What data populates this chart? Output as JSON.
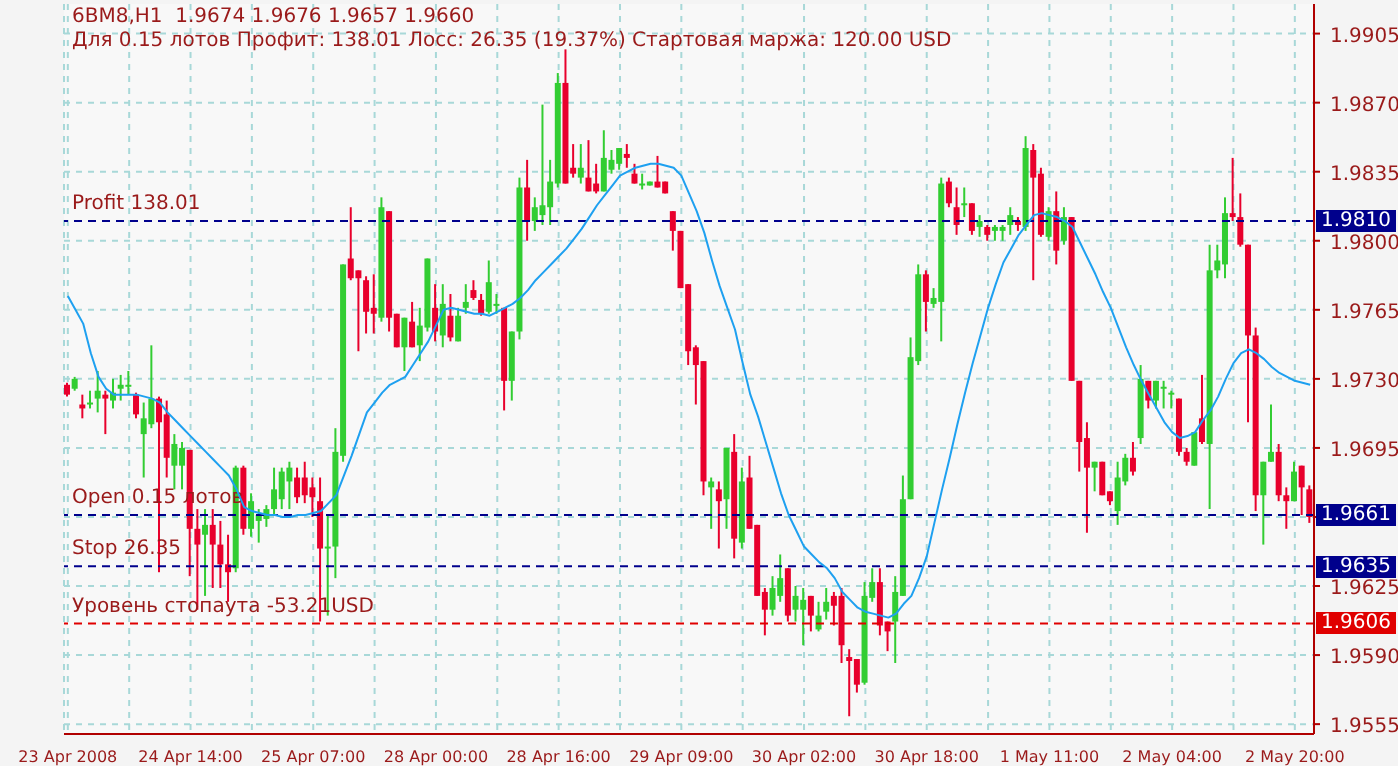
{
  "chart_data": {
    "type": "candlestick",
    "title": "6BM8,H1  1.9674 1.9676 1.9657 1.9660",
    "subtitle": "Для 0.15 лотов Профит: 138.01 Лосс: 26.35 (19.37%) Стартовая маржа: 120.00 USD",
    "categories": [
      "23 Apr 2008",
      null,
      null,
      null,
      null,
      null,
      null,
      null,
      null,
      null,
      null,
      null,
      null,
      null,
      null,
      null,
      "24 Apr 14:00",
      null,
      null,
      null,
      null,
      null,
      null,
      null,
      null,
      null,
      null,
      null,
      null,
      null,
      null,
      null,
      "25 Apr 07:00",
      null,
      null,
      null,
      null,
      null,
      null,
      null,
      null,
      null,
      null,
      null,
      null,
      null,
      null,
      null,
      "28 Apr 00:00",
      null,
      null,
      null,
      null,
      null,
      null,
      null,
      null,
      null,
      null,
      null,
      null,
      null,
      null,
      null,
      "28 Apr 16:00",
      null,
      null,
      null,
      null,
      null,
      null,
      null,
      null,
      null,
      null,
      null,
      null,
      null,
      null,
      null,
      "29 Apr 09:00",
      null,
      null,
      null,
      null,
      null,
      null,
      null,
      null,
      null,
      null,
      null,
      null,
      null,
      null,
      null,
      "30 Apr 02:00",
      null,
      null,
      null,
      null,
      null,
      null,
      null,
      null,
      null,
      null,
      null,
      null,
      null,
      null,
      null,
      "30 Apr 18:00",
      null,
      null,
      null,
      null,
      null,
      null,
      null,
      null,
      null,
      null,
      null,
      null,
      null,
      null,
      null,
      "1 May 11:00",
      null,
      null,
      null,
      null,
      null,
      null,
      null,
      null,
      null,
      null,
      null,
      null,
      null,
      null,
      null,
      "2 May 04:00",
      null,
      null,
      null,
      null,
      null,
      null,
      null,
      null,
      null,
      null,
      null,
      null,
      null,
      null,
      null,
      "2 May 20:00",
      null,
      null
    ],
    "series": [
      {
        "ohlc": [
          [
            1.9727,
            1.9728,
            1.9721,
            1.9722
          ],
          [
            1.9725,
            1.9731,
            1.9724,
            1.973
          ],
          [
            1.9717,
            1.9722,
            1.971,
            1.9715
          ],
          [
            1.9717,
            1.9724,
            1.9715,
            1.9718
          ],
          [
            1.972,
            1.9734,
            1.9713,
            1.9724
          ],
          [
            1.9722,
            1.9724,
            1.9702,
            1.972
          ],
          [
            1.9719,
            1.973,
            1.9715,
            1.9723
          ],
          [
            1.9725,
            1.9732,
            1.9719,
            1.9727
          ],
          [
            1.9726,
            1.9734,
            1.9722,
            1.9727
          ],
          [
            1.9722,
            1.9723,
            1.971,
            1.9712
          ],
          [
            1.9702,
            1.9718,
            1.968,
            1.971
          ],
          [
            1.9707,
            1.9747,
            1.9705,
            1.972
          ],
          [
            1.972,
            1.9721,
            1.9632,
            1.9708
          ],
          [
            1.9712,
            1.9719,
            1.968,
            1.969
          ],
          [
            1.9686,
            1.9702,
            1.9674,
            1.9697
          ],
          [
            1.9686,
            1.9698,
            1.9674,
            1.9695
          ],
          [
            1.9694,
            1.9694,
            1.963,
            1.9654
          ],
          [
            1.9654,
            1.9664,
            1.9613,
            1.9646
          ],
          [
            1.9651,
            1.9664,
            1.962,
            1.9656
          ],
          [
            1.9656,
            1.9664,
            1.9624,
            1.9646
          ],
          [
            1.9646,
            1.9658,
            1.9624,
            1.9636
          ],
          [
            1.9636,
            1.9651,
            1.9617,
            1.9632
          ],
          [
            1.9634,
            1.9686,
            1.9632,
            1.9685
          ],
          [
            1.9685,
            1.9686,
            1.9651,
            1.9654
          ],
          [
            1.9654,
            1.9672,
            1.965,
            1.9668
          ],
          [
            1.9658,
            1.9664,
            1.9647,
            1.9661
          ],
          [
            1.9659,
            1.9666,
            1.9655,
            1.9664
          ],
          [
            1.9664,
            1.9685,
            1.9661,
            1.9674
          ],
          [
            1.9669,
            1.9685,
            1.9664,
            1.9683
          ],
          [
            1.9678,
            1.9688,
            1.9664,
            1.9685
          ],
          [
            1.968,
            1.9685,
            1.9667,
            1.967
          ],
          [
            1.968,
            1.9688,
            1.9667,
            1.9671
          ],
          [
            1.9675,
            1.968,
            1.966,
            1.967
          ],
          [
            1.9668,
            1.968,
            1.9607,
            1.9644
          ],
          [
            1.9644,
            1.9661,
            1.961,
            1.9645
          ],
          [
            1.9645,
            1.9705,
            1.9629,
            1.9693
          ],
          [
            1.9691,
            1.9788,
            1.9688,
            1.9788
          ],
          [
            1.9791,
            1.9817,
            1.978,
            1.9781
          ],
          [
            1.9785,
            1.9785,
            1.9744,
            1.9781
          ],
          [
            1.978,
            1.9782,
            1.9753,
            1.9764
          ],
          [
            1.9766,
            1.9783,
            1.9753,
            1.9763
          ],
          [
            1.9761,
            1.9822,
            1.9759,
            1.9817
          ],
          [
            1.9815,
            1.9815,
            1.9754,
            1.9761
          ],
          [
            1.9763,
            1.9763,
            1.9746,
            1.9746
          ],
          [
            1.9746,
            1.9761,
            1.9734,
            1.9761
          ],
          [
            1.9759,
            1.9769,
            1.9746,
            1.9746
          ],
          [
            1.9747,
            1.9766,
            1.9739,
            1.9757
          ],
          [
            1.9756,
            1.9791,
            1.9754,
            1.9791
          ],
          [
            1.9766,
            1.9778,
            1.9749,
            1.9754
          ],
          [
            1.9752,
            1.9778,
            1.9746,
            1.9768
          ],
          [
            1.9762,
            1.9773,
            1.9749,
            1.9751
          ],
          [
            1.9749,
            1.9766,
            1.9749,
            1.9762
          ],
          [
            1.9766,
            1.9778,
            1.9763,
            1.9769
          ],
          [
            1.9775,
            1.978,
            1.977,
            1.9771
          ],
          [
            1.977,
            1.9773,
            1.9762,
            1.9763
          ],
          [
            1.9764,
            1.979,
            1.9763,
            1.9779
          ],
          [
            1.9767,
            1.9773,
            1.9763,
            1.9768
          ],
          [
            1.9766,
            1.9766,
            1.9714,
            1.9729
          ],
          [
            1.9729,
            1.9754,
            1.9719,
            1.9754
          ],
          [
            1.9754,
            1.9832,
            1.975,
            1.9827
          ],
          [
            1.9827,
            1.9841,
            1.98,
            1.981
          ],
          [
            1.981,
            1.9822,
            1.9805,
            1.9817
          ],
          [
            1.9813,
            1.9869,
            1.9808,
            1.9818
          ],
          [
            1.9817,
            1.9841,
            1.9808,
            1.983
          ],
          [
            1.9829,
            1.9885,
            1.9827,
            1.988
          ],
          [
            1.988,
            1.9897,
            1.9829,
            1.9829
          ],
          [
            1.9837,
            1.9849,
            1.9832,
            1.9834
          ],
          [
            1.9832,
            1.9849,
            1.9829,
            1.9837
          ],
          [
            1.9832,
            1.9851,
            1.9825,
            1.9825
          ],
          [
            1.9829,
            1.9839,
            1.9824,
            1.9825
          ],
          [
            1.9825,
            1.9856,
            1.9825,
            1.9842
          ],
          [
            1.9836,
            1.9846,
            1.9834,
            1.9841
          ],
          [
            1.9839,
            1.9847,
            1.9836,
            1.9847
          ],
          [
            1.9844,
            1.9849,
            1.9837,
            1.9842
          ],
          [
            1.9834,
            1.9839,
            1.9829,
            1.9829
          ],
          [
            1.9828,
            1.9834,
            1.9826,
            1.9829
          ],
          [
            1.9828,
            1.983,
            1.9828,
            1.983
          ],
          [
            1.983,
            1.9843,
            1.9827,
            1.9827
          ],
          [
            1.983,
            1.983,
            1.9824,
            1.9824
          ],
          [
            1.9815,
            1.9815,
            1.9795,
            1.9805
          ],
          [
            1.9805,
            1.9805,
            1.9776,
            1.9776
          ],
          [
            1.9778,
            1.9778,
            1.9737,
            1.9744
          ],
          [
            1.9746,
            1.9747,
            1.9717,
            1.9737
          ],
          [
            1.9739,
            1.9739,
            1.9671,
            1.9678
          ],
          [
            1.9675,
            1.968,
            1.9654,
            1.9678
          ],
          [
            1.9674,
            1.9678,
            1.9644,
            1.9668
          ],
          [
            1.9669,
            1.9695,
            1.9654,
            1.9695
          ],
          [
            1.9693,
            1.9702,
            1.9639,
            1.9649
          ],
          [
            1.9647,
            1.9685,
            1.9644,
            1.9678
          ],
          [
            1.968,
            1.9691,
            1.9654,
            1.9654
          ],
          [
            1.9656,
            1.9656,
            1.962,
            1.962
          ],
          [
            1.9622,
            1.9624,
            1.96,
            1.9613
          ],
          [
            1.9613,
            1.963,
            1.961,
            1.9624
          ],
          [
            1.962,
            1.9641,
            1.9617,
            1.9629
          ],
          [
            1.9634,
            1.9634,
            1.9607,
            1.961
          ],
          [
            1.9613,
            1.9625,
            1.9607,
            1.962
          ],
          [
            1.9613,
            1.9624,
            1.9595,
            1.9618
          ],
          [
            1.962,
            1.962,
            1.9602,
            1.961
          ],
          [
            1.9603,
            1.9617,
            1.9602,
            1.961
          ],
          [
            1.9612,
            1.9624,
            1.9608,
            1.9617
          ],
          [
            1.962,
            1.9622,
            1.9605,
            1.9615
          ],
          [
            1.962,
            1.9624,
            1.9586,
            1.9595
          ],
          [
            1.9589,
            1.9593,
            1.9559,
            1.9587
          ],
          [
            1.9588,
            1.9588,
            1.9571,
            1.9575
          ],
          [
            1.9576,
            1.9627,
            1.9575,
            1.962
          ],
          [
            1.9619,
            1.9634,
            1.9617,
            1.9627
          ],
          [
            1.9627,
            1.9634,
            1.96,
            1.9605
          ],
          [
            1.9607,
            1.9607,
            1.9592,
            1.9602
          ],
          [
            1.9607,
            1.963,
            1.9586,
            1.9622
          ],
          [
            1.962,
            1.9681,
            1.962,
            1.9669
          ],
          [
            1.9669,
            1.9751,
            1.9669,
            1.9741
          ],
          [
            1.9739,
            1.9788,
            1.9737,
            1.9783
          ],
          [
            1.9783,
            1.9785,
            1.9754,
            1.9769
          ],
          [
            1.9768,
            1.9776,
            1.9766,
            1.9771
          ],
          [
            1.9769,
            1.9832,
            1.9749,
            1.9829
          ],
          [
            1.983,
            1.9832,
            1.9817,
            1.9819
          ],
          [
            1.9817,
            1.9827,
            1.9803,
            1.9808
          ],
          [
            1.9818,
            1.9827,
            1.9812,
            1.9819
          ],
          [
            1.9819,
            1.9819,
            1.9803,
            1.9805
          ],
          [
            1.9807,
            1.9813,
            1.9802,
            1.981
          ],
          [
            1.9807,
            1.9808,
            1.98,
            1.9803
          ],
          [
            1.9805,
            1.9808,
            1.98,
            1.9807
          ],
          [
            1.9805,
            1.9808,
            1.98,
            1.9807
          ],
          [
            1.9808,
            1.9817,
            1.9803,
            1.9813
          ],
          [
            1.981,
            1.9812,
            1.9805,
            1.9808
          ],
          [
            1.9807,
            1.9853,
            1.9805,
            1.9847
          ],
          [
            1.9846,
            1.9849,
            1.978,
            1.9832
          ],
          [
            1.9834,
            1.9837,
            1.9802,
            1.9803
          ],
          [
            1.9802,
            1.9817,
            1.98,
            1.9815
          ],
          [
            1.9815,
            1.9825,
            1.9788,
            1.9795
          ],
          [
            1.98,
            1.9817,
            1.9798,
            1.9812
          ],
          [
            1.9812,
            1.9812,
            1.9729,
            1.9729
          ],
          [
            1.9729,
            1.9729,
            1.9683,
            1.9698
          ],
          [
            1.97,
            1.9708,
            1.9652,
            1.9685
          ],
          [
            1.9685,
            1.9688,
            1.9673,
            1.9688
          ],
          [
            1.9688,
            1.9688,
            1.9671,
            1.9671
          ],
          [
            1.9673,
            1.9673,
            1.9666,
            1.9668
          ],
          [
            1.9663,
            1.9688,
            1.9656,
            1.968
          ],
          [
            1.9678,
            1.9692,
            1.9676,
            1.969
          ],
          [
            1.969,
            1.9698,
            1.9681,
            1.9683
          ],
          [
            1.97,
            1.9737,
            1.9697,
            1.973
          ],
          [
            1.9729,
            1.9729,
            1.9715,
            1.9719
          ],
          [
            1.9719,
            1.9729,
            1.9715,
            1.9729
          ],
          [
            1.9725,
            1.9729,
            1.9715,
            1.9726
          ],
          [
            1.9722,
            1.9724,
            1.9715,
            1.9723
          ],
          [
            1.972,
            1.972,
            1.9691,
            1.9693
          ],
          [
            1.9693,
            1.9695,
            1.9686,
            1.9688
          ],
          [
            1.9686,
            1.9703,
            1.9686,
            1.9703
          ],
          [
            1.971,
            1.9732,
            1.9697,
            1.9698
          ],
          [
            1.9697,
            1.9798,
            1.9664,
            1.9785
          ],
          [
            1.9785,
            1.9798,
            1.9781,
            1.979
          ],
          [
            1.9788,
            1.9822,
            1.9781,
            1.9814
          ],
          [
            1.9814,
            1.9842,
            1.981,
            1.9812
          ],
          [
            1.9812,
            1.9824,
            1.9797,
            1.9798
          ],
          [
            1.9798,
            1.9798,
            1.9708,
            1.9752
          ],
          [
            1.9752,
            1.9756,
            1.9663,
            1.9671
          ],
          [
            1.9671,
            1.9688,
            1.9646,
            1.9688
          ],
          [
            1.9688,
            1.9717,
            1.9688,
            1.9693
          ],
          [
            1.9693,
            1.9697,
            1.9668,
            1.9671
          ],
          [
            1.9671,
            1.9675,
            1.9654,
            1.9668
          ],
          [
            1.9668,
            1.9688,
            1.9668,
            1.9683
          ],
          [
            1.9686,
            1.9686,
            1.9661,
            1.9675
          ],
          [
            1.9674,
            1.9676,
            1.9657,
            1.966
          ]
        ],
        "colors": [
          "#e8002c",
          "#32cd32",
          "#e8002c",
          "#32cd32",
          "#32cd32",
          "#e8002c",
          "#32cd32",
          "#32cd32",
          "#32cd32",
          "#e8002c",
          "#32cd32",
          "#32cd32",
          "#e8002c",
          "#e8002c",
          "#32cd32",
          "#32cd32",
          "#e8002c",
          "#e8002c",
          "#32cd32",
          "#e8002c",
          "#e8002c",
          "#e8002c",
          "#32cd32",
          "#e8002c",
          "#32cd32",
          "#32cd32",
          "#32cd32",
          "#32cd32",
          "#32cd32",
          "#32cd32",
          "#e8002c",
          "#e8002c",
          "#e8002c",
          "#e8002c",
          "#32cd32",
          "#32cd32",
          "#32cd32",
          "#e8002c",
          "#e8002c",
          "#e8002c",
          "#e8002c",
          "#32cd32",
          "#e8002c",
          "#e8002c",
          "#32cd32",
          "#e8002c",
          "#32cd32",
          "#32cd32",
          "#e8002c",
          "#32cd32",
          "#e8002c",
          "#32cd32",
          "#32cd32",
          "#e8002c",
          "#e8002c",
          "#32cd32",
          "#32cd32",
          "#e8002c",
          "#32cd32",
          "#32cd32",
          "#e8002c",
          "#32cd32",
          "#32cd32",
          "#32cd32",
          "#32cd32",
          "#e8002c",
          "#e8002c",
          "#32cd32",
          "#e8002c",
          "#e8002c",
          "#32cd32",
          "#32cd32",
          "#32cd32",
          "#e8002c",
          "#e8002c",
          "#32cd32",
          "#32cd32",
          "#e8002c",
          "#e8002c",
          "#e8002c",
          "#e8002c",
          "#e8002c",
          "#e8002c",
          "#e8002c",
          "#32cd32",
          "#e8002c",
          "#32cd32",
          "#e8002c",
          "#32cd32",
          "#e8002c",
          "#e8002c",
          "#e8002c",
          "#32cd32",
          "#32cd32",
          "#e8002c",
          "#32cd32",
          "#32cd32",
          "#e8002c",
          "#32cd32",
          "#32cd32",
          "#e8002c",
          "#e8002c",
          "#e8002c",
          "#e8002c",
          "#32cd32",
          "#32cd32",
          "#e8002c",
          "#e8002c",
          "#32cd32",
          "#32cd32",
          "#32cd32",
          "#32cd32",
          "#e8002c",
          "#32cd32",
          "#32cd32",
          "#e8002c",
          "#e8002c",
          "#32cd32",
          "#e8002c",
          "#32cd32",
          "#e8002c",
          "#32cd32",
          "#32cd32",
          "#32cd32",
          "#e8002c",
          "#32cd32",
          "#e8002c",
          "#e8002c",
          "#32cd32",
          "#e8002c",
          "#32cd32",
          "#e8002c",
          "#e8002c",
          "#e8002c",
          "#32cd32",
          "#e8002c",
          "#e8002c",
          "#32cd32",
          "#32cd32",
          "#e8002c",
          "#32cd32",
          "#e8002c",
          "#32cd32",
          "#32cd32",
          "#32cd32",
          "#e8002c",
          "#e8002c",
          "#32cd32",
          "#e8002c",
          "#32cd32",
          "#32cd32",
          "#32cd32",
          "#e8002c",
          "#e8002c",
          "#e8002c",
          "#e8002c",
          "#32cd32",
          "#32cd32",
          "#e8002c",
          "#e8002c",
          "#32cd32",
          "#e8002c",
          "#e8002c"
        ]
      },
      {
        "type": "line",
        "color": "#1ea0f0",
        "values": [
          1.9772,
          1.9765,
          1.9758,
          1.9743,
          1.9731,
          1.9725,
          1.9722,
          1.9722,
          1.9722,
          1.9722,
          1.9721,
          1.972,
          1.9718,
          1.9713,
          1.9709,
          1.9705,
          1.9701,
          1.9697,
          1.9693,
          1.9689,
          1.9685,
          1.9681,
          1.9674,
          1.9665,
          1.9663,
          1.9662,
          1.9661,
          1.9661,
          1.966,
          1.966,
          1.9661,
          1.9661,
          1.9662,
          1.9663,
          1.9667,
          1.9671,
          1.9681,
          1.9691,
          1.9702,
          1.9713,
          1.9718,
          1.9723,
          1.9727,
          1.9729,
          1.9731,
          1.9737,
          1.9743,
          1.9749,
          1.9757,
          1.9765,
          1.9766,
          1.9765,
          1.9764,
          1.9763,
          1.9763,
          1.9762,
          1.9764,
          1.9766,
          1.9768,
          1.9771,
          1.9775,
          1.978,
          1.9784,
          1.9788,
          1.9792,
          1.9796,
          1.9801,
          1.9806,
          1.9812,
          1.9818,
          1.9823,
          1.9828,
          1.9833,
          1.9835,
          1.9837,
          1.9838,
          1.9839,
          1.9839,
          1.9838,
          1.9837,
          1.9833,
          1.9824,
          1.9815,
          1.9804,
          1.979,
          1.9777,
          1.9766,
          1.9755,
          1.9738,
          1.9722,
          1.9711,
          1.9698,
          1.9685,
          1.9672,
          1.9661,
          1.9653,
          1.9645,
          1.9641,
          1.9637,
          1.9634,
          1.9629,
          1.9622,
          1.9618,
          1.9614,
          1.9612,
          1.9611,
          1.961,
          1.9609,
          1.9611,
          1.9616,
          1.962,
          1.9629,
          1.964,
          1.9657,
          1.9674,
          1.969,
          1.9707,
          1.9723,
          1.9738,
          1.9752,
          1.9766,
          1.9778,
          1.9789,
          1.9796,
          1.9803,
          1.9808,
          1.9813,
          1.9814,
          1.9813,
          1.9812,
          1.981,
          1.9807,
          1.9799,
          1.9791,
          1.9783,
          1.9774,
          1.9766,
          1.9756,
          1.9746,
          1.9737,
          1.9729,
          1.9722,
          1.9715,
          1.9708,
          1.9703,
          1.97,
          1.9701,
          1.9703,
          1.9709,
          1.9714,
          1.9721,
          1.973,
          1.9738,
          1.9743,
          1.9745,
          1.9743,
          1.974,
          1.9736,
          1.9733,
          1.9731,
          1.9729,
          1.9728,
          1.9727
        ]
      }
    ],
    "ylim": [
      1.955,
      1.992
    ],
    "yticks": [
      1.9555,
      {
        "value": 1.959,
        "label": "1.9590"
      },
      1.9625,
      {
        "value": 1.966,
        "label": null
      },
      1.9695,
      {
        "value": 1.973,
        "label": "1.9730"
      },
      1.9765,
      {
        "value": 1.98,
        "label": "1.9800"
      },
      1.9835,
      {
        "value": 1.987,
        "label": "1.9870"
      },
      1.9905
    ],
    "annotations": [
      "1.9810",
      "1.9661",
      "1.9635",
      "1.9606"
    ],
    "grid": true,
    "ref_lines": [
      {
        "axis": "y",
        "value": 1.981,
        "label": "Profit 138.01",
        "color": "#00008c",
        "line_style": "dashed"
      },
      {
        "axis": "y",
        "value": 1.9661,
        "label": "Open 0.15 лотов",
        "color": "#00008c",
        "line_style": "dashed"
      },
      {
        "axis": "y",
        "value": 1.9635,
        "label": "Stop 26.35",
        "color": "#00008c",
        "line_style": "dashed"
      },
      {
        "axis": "y",
        "value": 1.9606,
        "label": "Уровень стопаута -53.21USD",
        "color": "#e00000",
        "line_style": "dashed"
      }
    ]
  }
}
